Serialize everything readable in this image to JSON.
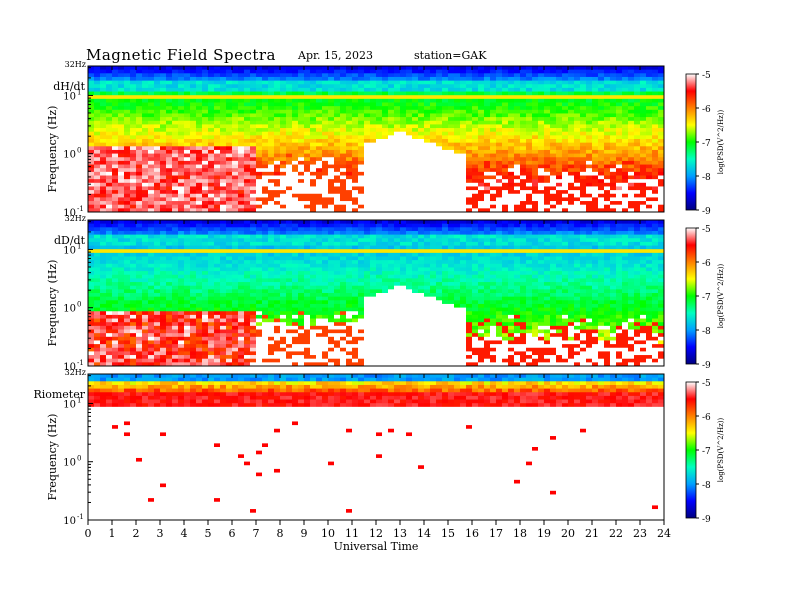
{
  "header": {
    "title": "Magnetic  Field  Spectra",
    "date": "Apr. 15, 2023",
    "station": "station=GAK"
  },
  "chart_data": [
    {
      "type": "heatmap",
      "panel_label": "dH/dt",
      "ylabel": "Frequency  (Hz)",
      "top_label": "32Hz",
      "yscale": "log",
      "ylim": [
        0.1,
        32
      ],
      "xlim": [
        0,
        24
      ],
      "regime": "active"
    },
    {
      "type": "heatmap",
      "panel_label": "dD/dt",
      "ylabel": "Frequency  (Hz)",
      "top_label": "32Hz",
      "yscale": "log",
      "ylim": [
        0.1,
        32
      ],
      "xlim": [
        0,
        24
      ],
      "regime": "quiet"
    },
    {
      "type": "heatmap",
      "panel_label": "Riometer",
      "ylabel": "Frequency  (Hz)",
      "top_label": "32Hz",
      "yscale": "log",
      "ylim": [
        0.1,
        32
      ],
      "xlim": [
        0,
        24
      ],
      "regime": "riometer"
    }
  ],
  "axes": {
    "ytick_bases": [
      "10",
      "10",
      "10"
    ],
    "ytick_exps": [
      "-1",
      "0",
      "1"
    ],
    "xticks": [
      "0",
      "1",
      "2",
      "3",
      "4",
      "5",
      "6",
      "7",
      "8",
      "9",
      "10",
      "11",
      "12",
      "13",
      "14",
      "15",
      "16",
      "17",
      "18",
      "19",
      "20",
      "21",
      "22",
      "23",
      "24"
    ],
    "xlabel": "Universal  Time"
  },
  "colorbar": {
    "ticks": [
      "-5",
      "-6",
      "-7",
      "-8",
      "-9"
    ],
    "label": "log(PSD(V^2/Hz))",
    "range": [
      -9,
      -5
    ],
    "colors": [
      "#000080",
      "#0000ff",
      "#00a0ff",
      "#00ffc0",
      "#00ff00",
      "#ffff00",
      "#ff8000",
      "#ff0000",
      "#ffffff"
    ]
  }
}
